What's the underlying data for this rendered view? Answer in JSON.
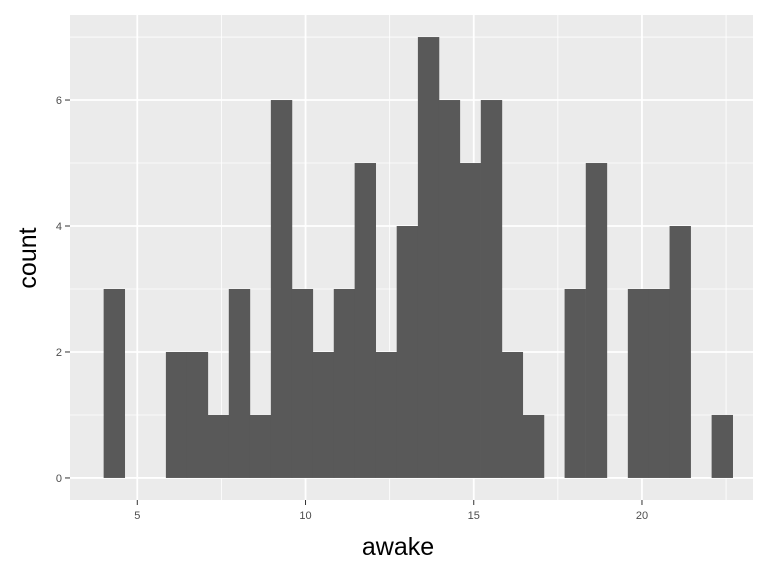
{
  "chart_data": {
    "type": "bar",
    "histogram": true,
    "xlabel": "awake",
    "ylabel": "count",
    "xlim": [
      3.0,
      23.3
    ],
    "ylim": [
      -0.35,
      7.35
    ],
    "xticks": [
      5,
      10,
      15,
      20
    ],
    "yticks": [
      0,
      2,
      4,
      6
    ],
    "bin_width": 0.6233,
    "bins": [
      {
        "start": 4.0,
        "count": 3
      },
      {
        "start": 5.85,
        "count": 2
      },
      {
        "start": 6.47,
        "count": 2
      },
      {
        "start": 7.1,
        "count": 1
      },
      {
        "start": 7.72,
        "count": 3
      },
      {
        "start": 8.34,
        "count": 1
      },
      {
        "start": 8.97,
        "count": 6
      },
      {
        "start": 9.59,
        "count": 3
      },
      {
        "start": 10.22,
        "count": 2
      },
      {
        "start": 10.84,
        "count": 3
      },
      {
        "start": 11.46,
        "count": 5
      },
      {
        "start": 12.09,
        "count": 2
      },
      {
        "start": 12.71,
        "count": 4
      },
      {
        "start": 13.34,
        "count": 7
      },
      {
        "start": 13.96,
        "count": 6
      },
      {
        "start": 14.58,
        "count": 5
      },
      {
        "start": 15.21,
        "count": 6
      },
      {
        "start": 15.83,
        "count": 2
      },
      {
        "start": 16.46,
        "count": 1
      },
      {
        "start": 17.7,
        "count": 3
      },
      {
        "start": 18.33,
        "count": 5
      },
      {
        "start": 19.58,
        "count": 3
      },
      {
        "start": 20.2,
        "count": 3
      },
      {
        "start": 20.82,
        "count": 4
      },
      {
        "start": 22.07,
        "count": 1
      }
    ],
    "grid": true,
    "colors": {
      "panel": "#ebebeb",
      "grid_major": "#ffffff",
      "bar": "#595959",
      "tick": "#333333",
      "tick_label": "#4d4d4d"
    }
  }
}
